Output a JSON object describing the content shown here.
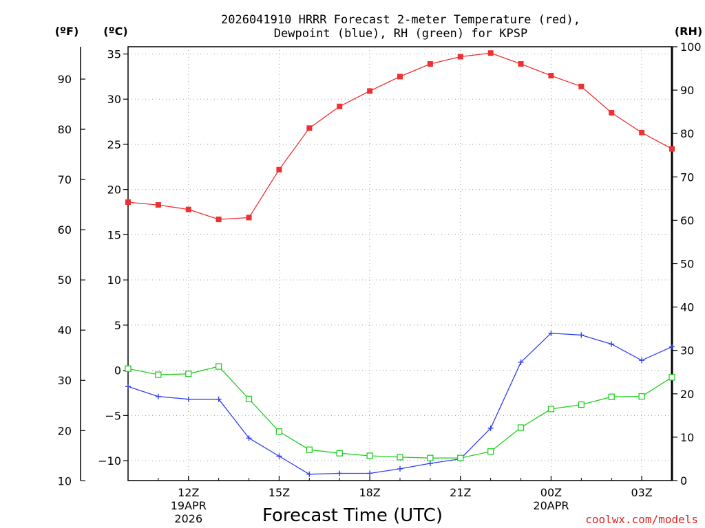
{
  "chart_data": {
    "type": "line",
    "title_line1": "2026041910 HRRR Forecast 2-meter Temperature (red),",
    "title_line2": "Dewpoint (blue), RH (green) for KPSP",
    "xlabel": "Forecast Time (UTC)",
    "units": {
      "fahrenheit": "(ºF)",
      "celsius": "(ºC)",
      "rh": "(RH)"
    },
    "x_hours": [
      10,
      11,
      12,
      13,
      14,
      15,
      16,
      17,
      18,
      19,
      20,
      21,
      22,
      23,
      24,
      25,
      26,
      27,
      28
    ],
    "xlim": [
      10,
      28
    ],
    "x_ticks": [
      {
        "hour": 12,
        "lines": [
          "12Z",
          "19APR",
          "2026"
        ]
      },
      {
        "hour": 15,
        "lines": [
          "15Z"
        ]
      },
      {
        "hour": 18,
        "lines": [
          "18Z"
        ]
      },
      {
        "hour": 21,
        "lines": [
          "21Z"
        ]
      },
      {
        "hour": 24,
        "lines": [
          "00Z",
          "20APR"
        ]
      },
      {
        "hour": 27,
        "lines": [
          "03Z"
        ]
      }
    ],
    "celsius_axis": {
      "lim": [
        -12.2,
        35.8
      ],
      "ticks": [
        35,
        30,
        25,
        20,
        15,
        10,
        5,
        0,
        -5,
        -10
      ],
      "tick_labels": [
        "35",
        "30",
        "25",
        "20",
        "15",
        "10",
        "5",
        "0",
        "−5",
        "−10"
      ]
    },
    "fahrenheit_axis": {
      "ticks": [
        90,
        80,
        70,
        60,
        50,
        40,
        30,
        20,
        10
      ],
      "tick_labels": [
        "90",
        "80",
        "70",
        "60",
        "50",
        "40",
        "30",
        "20",
        "10"
      ]
    },
    "rh_axis": {
      "lim": [
        0,
        100
      ],
      "ticks": [
        100,
        90,
        80,
        70,
        60,
        50,
        40,
        30,
        20,
        10,
        0
      ],
      "tick_labels": [
        "100",
        "90",
        "80",
        "70",
        "60",
        "50",
        "40",
        "30",
        "20",
        "10",
        "0"
      ]
    },
    "series": [
      {
        "name": "Temperature",
        "units": "C",
        "color": "#f03030",
        "marker": "filled-square",
        "values": [
          18.6,
          18.3,
          17.8,
          16.7,
          16.9,
          22.2,
          26.8,
          29.2,
          30.9,
          32.5,
          33.9,
          34.7,
          35.1,
          33.9,
          32.6,
          31.4,
          28.5,
          26.3,
          24.5
        ]
      },
      {
        "name": "Dewpoint",
        "units": "C",
        "color": "#3040f0",
        "marker": "plus",
        "values": [
          -1.8,
          -2.9,
          -3.2,
          -3.2,
          -7.5,
          -9.5,
          -11.5,
          -11.4,
          -11.4,
          -10.9,
          -10.3,
          -9.8,
          -6.4,
          0.9,
          4.1,
          3.9,
          2.9,
          1.1,
          2.6
        ]
      },
      {
        "name": "RH",
        "units": "%",
        "color": "#20d020",
        "marker": "open-square",
        "values": [
          25.8,
          24.4,
          24.6,
          26.3,
          18.8,
          11.3,
          7.1,
          6.3,
          5.7,
          5.4,
          5.2,
          5.2,
          6.7,
          12.2,
          16.5,
          17.5,
          19.3,
          19.4,
          23.8
        ]
      }
    ]
  },
  "credit": {
    "text": "coolwx.com/models",
    "color": "#e02020"
  }
}
